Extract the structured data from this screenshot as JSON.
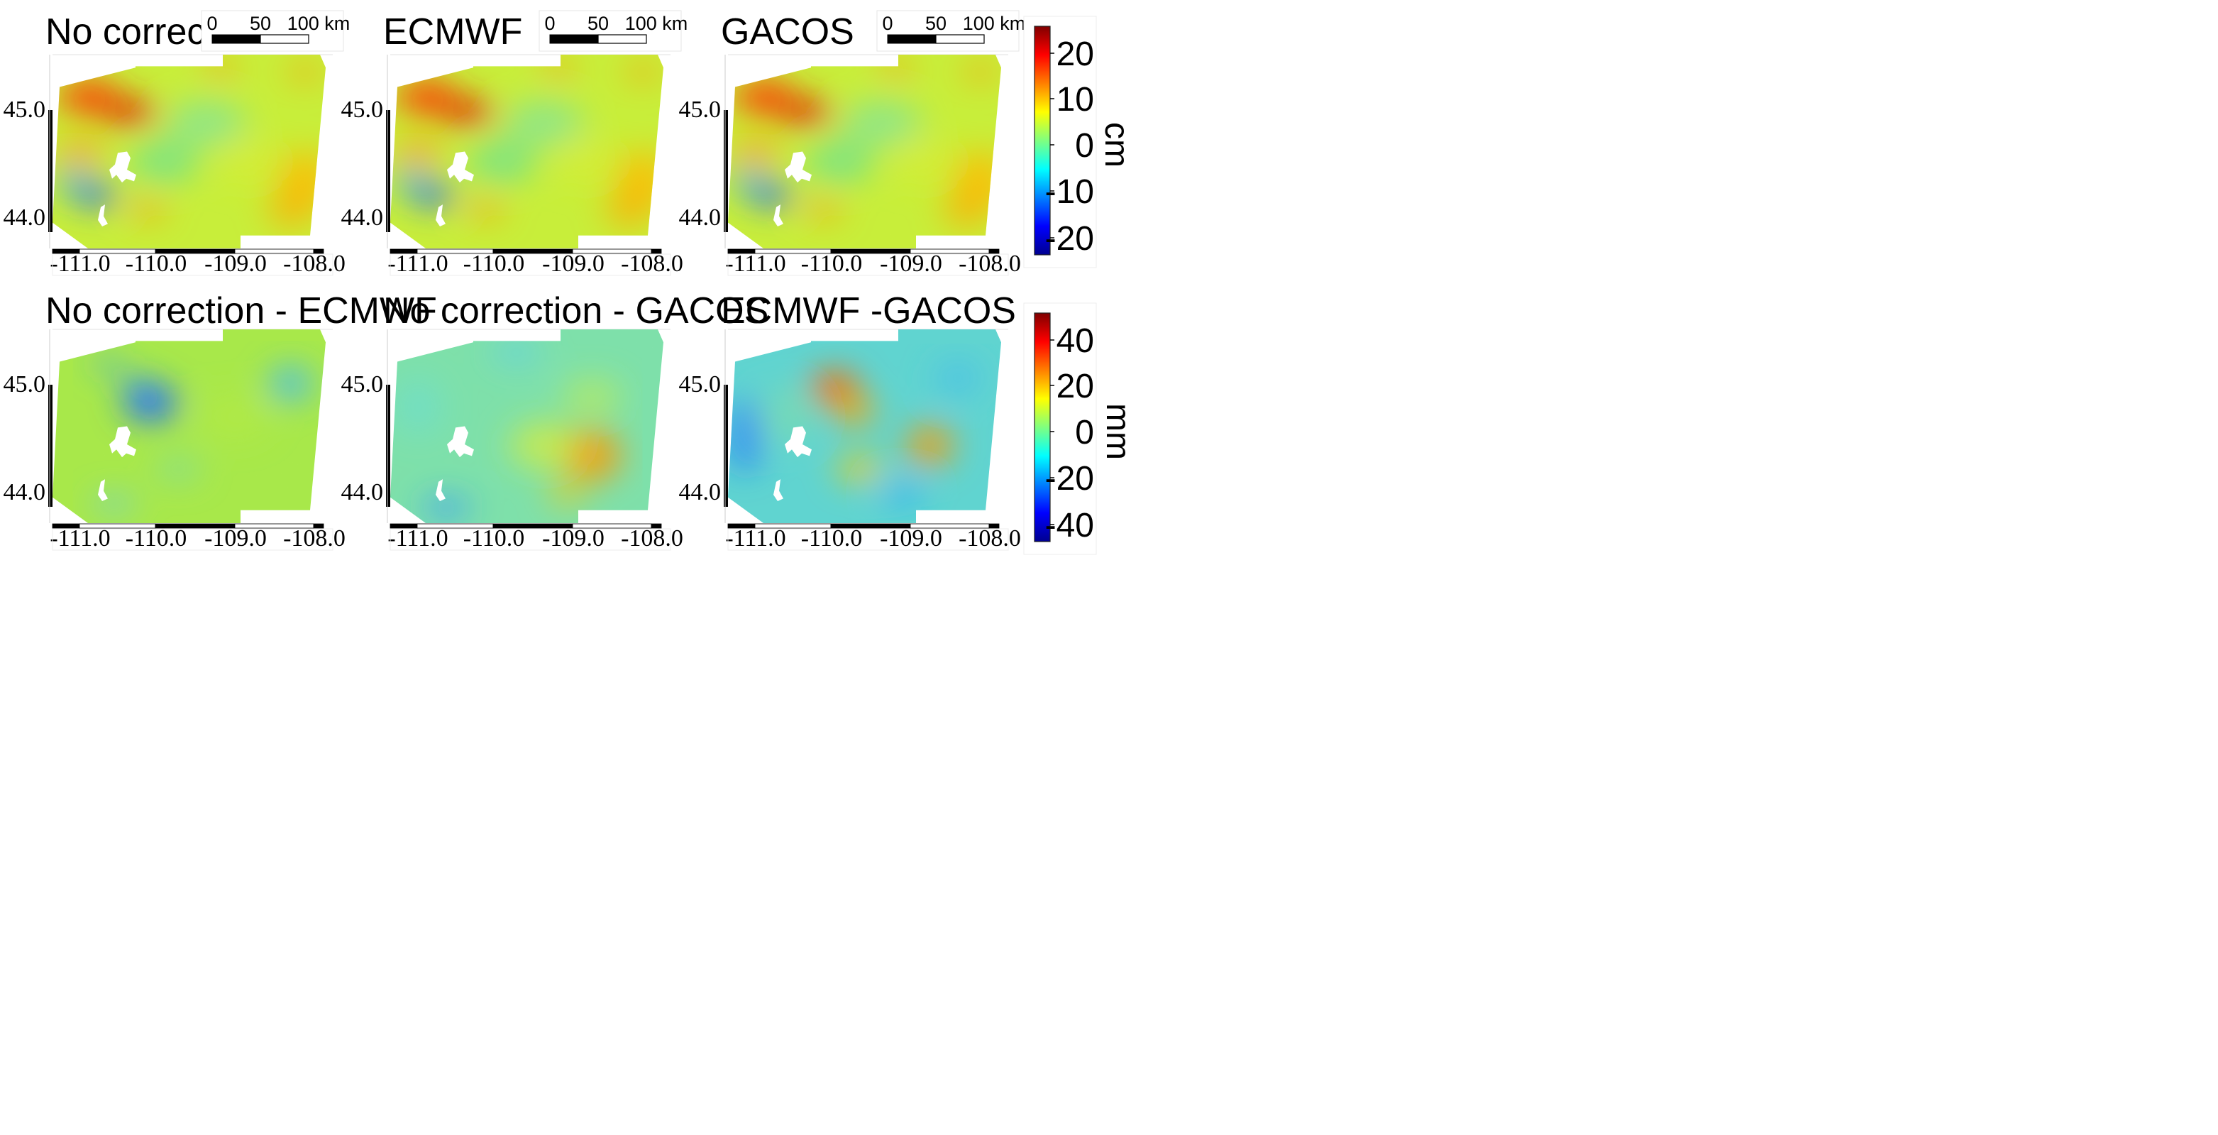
{
  "chart_data": {
    "type": "heatmap",
    "description": "InSAR displacement maps over the Yellowstone region with atmospheric corrections",
    "x_ticks": [
      "-111.0",
      "-110.0",
      "-109.0",
      "-108.0"
    ],
    "y_ticks": [
      "45.0",
      "44.0"
    ],
    "xlim": [
      -111.35,
      -108.0
    ],
    "ylim": [
      43.7,
      45.45
    ],
    "scalebar": {
      "labels": [
        "0",
        "50",
        "100 km"
      ]
    },
    "colorbars": [
      {
        "unit": "cm",
        "ticks": [
          "20",
          "10",
          "0",
          "-10",
          "-20"
        ],
        "range": [
          -25,
          25
        ]
      },
      {
        "unit": "mm",
        "ticks": [
          "40",
          "20",
          "0",
          "-20",
          "-40"
        ],
        "range": [
          -50,
          50
        ]
      }
    ],
    "panels": [
      {
        "title": "No correction",
        "row": 0,
        "pattern": "raw",
        "colorbar": 0,
        "scalebar": true
      },
      {
        "title": "ECMWF",
        "row": 0,
        "pattern": "raw",
        "colorbar": 0,
        "scalebar": true
      },
      {
        "title": "GACOS",
        "row": 0,
        "pattern": "raw",
        "colorbar": 0,
        "scalebar": true
      },
      {
        "title": "No correction - ECMWF",
        "row": 1,
        "pattern": "diff_ecmwf",
        "colorbar": 1,
        "scalebar": false
      },
      {
        "title": "No correction - GACOS",
        "row": 1,
        "pattern": "diff_gacos",
        "colorbar": 1,
        "scalebar": false
      },
      {
        "title": "ECMWF -GACOS",
        "row": 1,
        "pattern": "diff_eg",
        "colorbar": 1,
        "scalebar": false
      }
    ]
  },
  "colors": {
    "jet": [
      "#00008f",
      "#0000ff",
      "#00ffff",
      "#ffff00",
      "#ff0000",
      "#800000"
    ]
  }
}
